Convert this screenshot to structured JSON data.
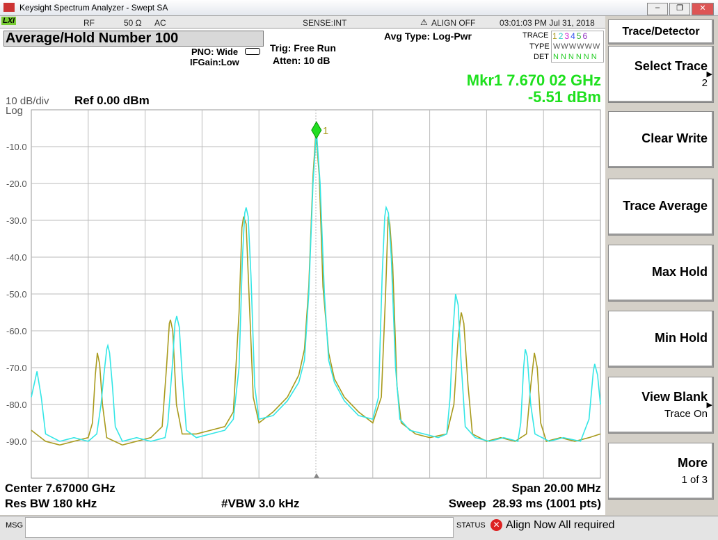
{
  "window": {
    "title": "Keysight Spectrum Analyzer - Swept SA",
    "logo": "LXI"
  },
  "status_bar": {
    "rf": "RF",
    "impedance": "50 Ω",
    "coupling": "AC",
    "sense": "SENSE:INT",
    "align": "ALIGN OFF",
    "datetime": "03:01:03 PM Jul 31, 2018"
  },
  "header": {
    "title": "Average/Hold Number 100",
    "pno": "PNO: Wide",
    "ifgain": "IFGain:Low",
    "trig": "Trig: Free Run",
    "atten": "Atten: 10 dB",
    "avg_type": "Avg Type: Log-Pwr",
    "trace_table": {
      "trace_label": "TRACE",
      "type_label": "TYPE",
      "det_label": "DET",
      "traces": [
        "1",
        "2",
        "3",
        "4",
        "5",
        "6"
      ],
      "types": "WWWWWW",
      "dets": "NNNNNN"
    }
  },
  "marker_readout": {
    "frequency": "Mkr1 7.670 02 GHz",
    "amplitude": "-5.51 dBm"
  },
  "scale": {
    "per_div": "10 dB/div",
    "ref": "Ref 0.00 dBm",
    "mode": "Log"
  },
  "chart_data": {
    "type": "line",
    "xlim": [
      7660,
      7680
    ],
    "ylim": [
      -100,
      0
    ],
    "yticks": [
      {
        "value": -10,
        "label": "-10.0"
      },
      {
        "value": -20,
        "label": "-20.0"
      },
      {
        "value": -30,
        "label": "-30.0"
      },
      {
        "value": -40,
        "label": "-40.0"
      },
      {
        "value": -50,
        "label": "-50.0"
      },
      {
        "value": -60,
        "label": "-60.0"
      },
      {
        "value": -70,
        "label": "-70.0"
      },
      {
        "value": -80,
        "label": "-80.0"
      },
      {
        "value": -90,
        "label": "-90.0"
      }
    ],
    "grid": true,
    "series": [
      {
        "color": "#a89a1c",
        "x": [
          7660.0,
          7660.5,
          7661.0,
          7661.5,
          7662.0,
          7662.15,
          7662.25,
          7662.32,
          7662.4,
          7662.5,
          7662.65,
          7663.2,
          7663.7,
          7664.2,
          7664.6,
          7664.75,
          7664.85,
          7664.89,
          7664.97,
          7665.1,
          7665.3,
          7665.8,
          7666.3,
          7666.8,
          7667.1,
          7667.3,
          7667.4,
          7667.46,
          7667.55,
          7667.65,
          7667.8,
          7668.0,
          7668.5,
          7669.0,
          7669.4,
          7669.6,
          7669.75,
          7669.9,
          7670.0,
          7670.12,
          7670.25,
          7670.45,
          7670.65,
          7671.0,
          7671.5,
          7672.0,
          7672.3,
          7672.45,
          7672.54,
          7672.6,
          7672.7,
          7672.85,
          7673.0,
          7673.5,
          7674.0,
          7674.6,
          7674.85,
          7675.0,
          7675.11,
          7675.2,
          7675.35,
          7675.5,
          7676.0,
          7676.5,
          7677.0,
          7677.4,
          7677.55,
          7677.68,
          7677.78,
          7677.9,
          7678.1,
          7678.6,
          7679.1,
          7679.6,
          7680.0
        ],
        "values": [
          -87,
          -90,
          -91,
          -90,
          -89,
          -85,
          -72,
          -66,
          -69,
          -80,
          -89,
          -91,
          -90,
          -89,
          -86,
          -70,
          -58,
          -57,
          -60,
          -80,
          -88,
          -88,
          -87,
          -86,
          -82,
          -55,
          -32,
          -29,
          -31,
          -50,
          -78,
          -85,
          -82,
          -78,
          -72,
          -65,
          -48,
          -18,
          -6,
          -18,
          -48,
          -66,
          -73,
          -78,
          -82,
          -85,
          -78,
          -50,
          -29,
          -31,
          -42,
          -75,
          -85,
          -88,
          -89,
          -88,
          -80,
          -62,
          -55,
          -58,
          -75,
          -88,
          -90,
          -89,
          -90,
          -88,
          -75,
          -66,
          -70,
          -85,
          -90,
          -89,
          -90,
          -89,
          -88
        ]
      },
      {
        "color": "#33e6e6",
        "x": [
          7660.0,
          7660.2,
          7660.35,
          7660.5,
          7661.0,
          7661.5,
          7662.0,
          7662.3,
          7662.45,
          7662.55,
          7662.65,
          7662.69,
          7662.75,
          7662.85,
          7662.95,
          7663.2,
          7663.7,
          7664.2,
          7664.7,
          7664.8,
          7664.95,
          7665.05,
          7665.11,
          7665.2,
          7665.3,
          7665.45,
          7665.8,
          7666.3,
          7666.8,
          7667.1,
          7667.3,
          7667.42,
          7667.5,
          7667.55,
          7667.62,
          7667.72,
          7667.85,
          7668.0,
          7668.5,
          7669.0,
          7669.4,
          7669.6,
          7669.75,
          7669.9,
          7670.02,
          7670.15,
          7670.3,
          7670.45,
          7670.65,
          7671.0,
          7671.5,
          7672.0,
          7672.2,
          7672.33,
          7672.42,
          7672.47,
          7672.55,
          7672.65,
          7672.8,
          7672.95,
          7673.3,
          7673.8,
          7674.3,
          7674.6,
          7674.72,
          7674.82,
          7674.91,
          7675.0,
          7675.1,
          7675.25,
          7675.6,
          7676.1,
          7676.6,
          7677.1,
          7677.2,
          7677.3,
          7677.36,
          7677.43,
          7677.55,
          7677.7,
          7678.2,
          7678.7,
          7679.3,
          7679.6,
          7679.75,
          7679.8,
          7679.9,
          7680.0
        ],
        "values": [
          -78,
          -71,
          -78,
          -88,
          -90,
          -89,
          -90,
          -88,
          -80,
          -72,
          -65,
          -64,
          -66,
          -75,
          -86,
          -90,
          -89,
          -90,
          -89,
          -85,
          -70,
          -58,
          -56,
          -59,
          -72,
          -87,
          -89,
          -88,
          -87,
          -84,
          -70,
          -40,
          -28,
          -26.5,
          -29,
          -45,
          -75,
          -84,
          -83,
          -79,
          -74,
          -68,
          -50,
          -20,
          -5.51,
          -20,
          -50,
          -68,
          -74,
          -79,
          -83,
          -84,
          -78,
          -45,
          -29,
          -26.5,
          -28,
          -40,
          -70,
          -84,
          -87,
          -88,
          -89,
          -88,
          -78,
          -60,
          -50,
          -53,
          -68,
          -86,
          -89,
          -90,
          -89,
          -90,
          -85,
          -70,
          -65,
          -67,
          -80,
          -88,
          -90,
          -89,
          -90,
          -84,
          -71,
          -69,
          -72,
          -80
        ]
      }
    ],
    "marker": {
      "label": "1",
      "x": 7670.02,
      "y": -5.51
    }
  },
  "footer": {
    "center": "Center 7.67000 GHz",
    "res_bw": "Res BW 180 kHz",
    "vbw": "#VBW 3.0 kHz",
    "span": "Span 20.00 MHz",
    "sweep": "Sweep  28.93 ms (1001 pts)"
  },
  "bottom_bar": {
    "msg": "MSG",
    "status": "STATUS",
    "message": "Align Now All required"
  },
  "softkeys": {
    "title": "Trace/Detector",
    "keys": [
      {
        "label": "Select Trace",
        "value": "2"
      },
      {
        "label": "Clear Write"
      },
      {
        "label": "Trace Average"
      },
      {
        "label": "Max Hold"
      },
      {
        "label": "Min Hold"
      },
      {
        "label": "View Blank",
        "value": "Trace On"
      },
      {
        "label": "More",
        "value": "1 of 3"
      }
    ]
  }
}
